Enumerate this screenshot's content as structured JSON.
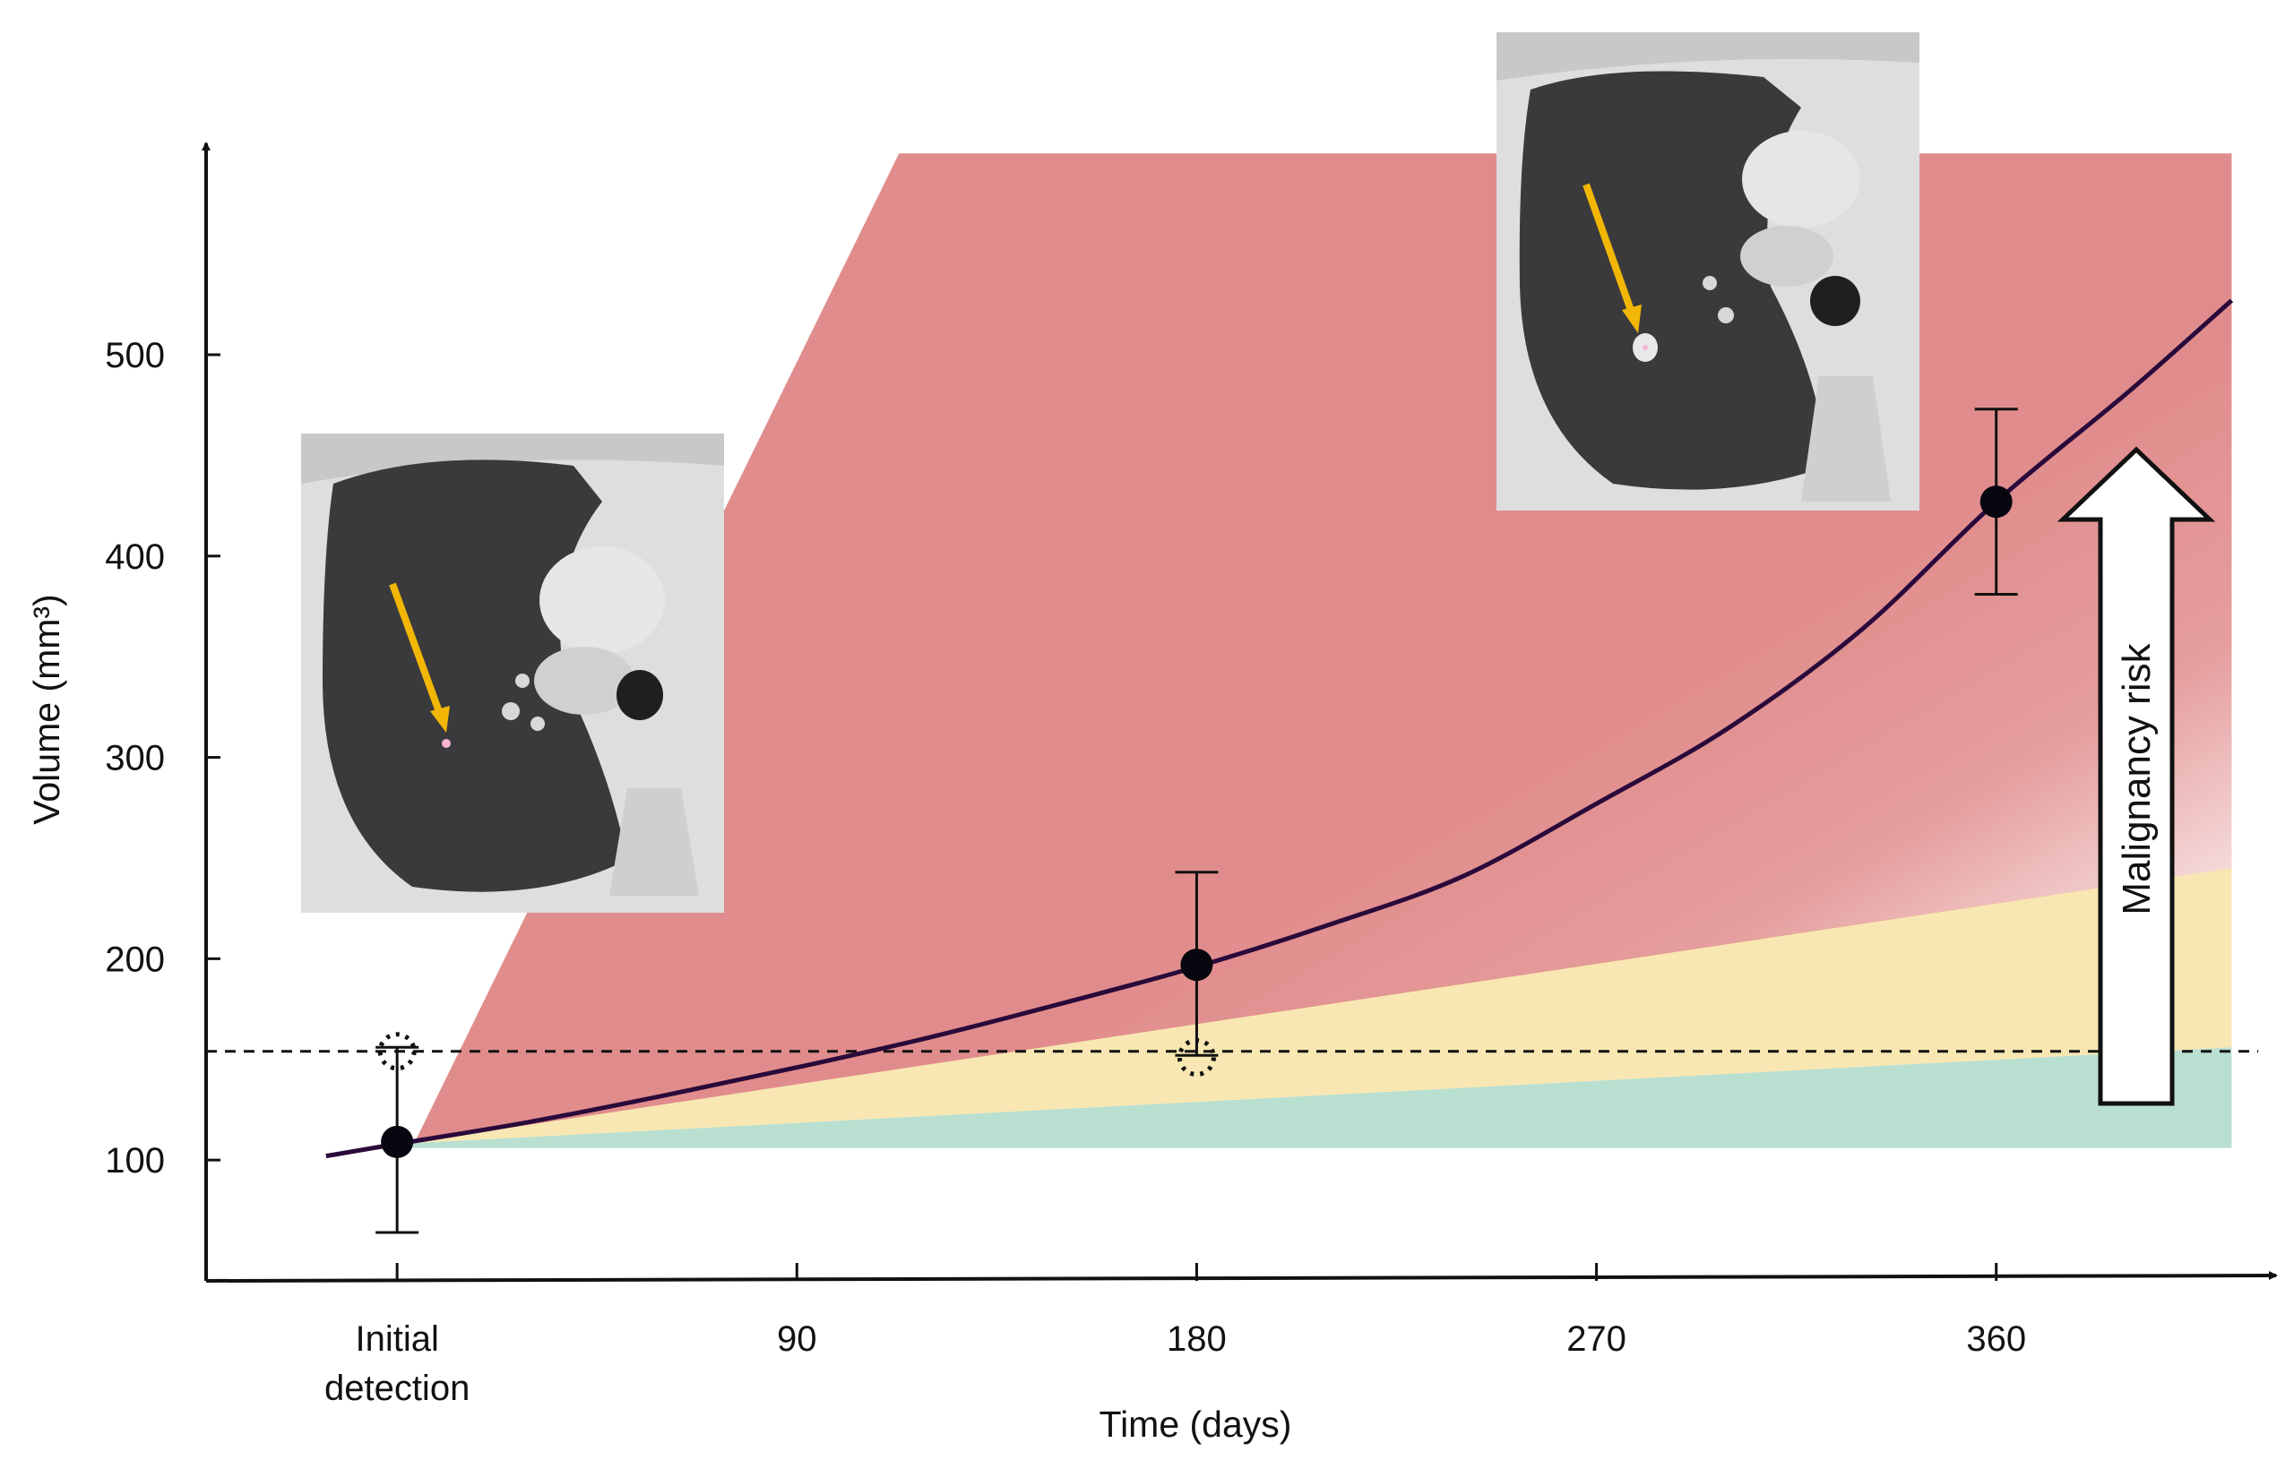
{
  "chart_data": {
    "type": "line",
    "xlabel": "Time (days)",
    "ylabel": "Volume (mm³)",
    "x_ticks": [
      {
        "value": 0,
        "lines": [
          "Initial",
          "detection"
        ]
      },
      {
        "value": 90,
        "lines": [
          "90"
        ]
      },
      {
        "value": 180,
        "lines": [
          "180"
        ]
      },
      {
        "value": 270,
        "lines": [
          "270"
        ]
      },
      {
        "value": 360,
        "lines": [
          "360"
        ]
      }
    ],
    "y_ticks": [
      100,
      200,
      300,
      400,
      500
    ],
    "xlim": [
      -43,
      423
    ],
    "ylim": [
      40,
      605
    ],
    "threshold_line": 154,
    "measurements": [
      {
        "x": 0,
        "y": 109,
        "err_low": 64,
        "err_high": 156
      },
      {
        "x": 180,
        "y": 197,
        "err_low": 152,
        "err_high": 243
      },
      {
        "x": 360,
        "y": 427,
        "err_low": 381,
        "err_high": 473
      }
    ],
    "volume_threshold_markers": [
      {
        "x": 0,
        "y": 154
      },
      {
        "x": 180,
        "y": 151
      }
    ],
    "fitted_curve": {
      "color": "#2a0a3a",
      "x": [
        -16,
        0,
        30,
        60,
        90,
        120,
        150,
        180,
        210,
        240,
        270,
        300,
        330,
        360,
        390,
        413
      ],
      "y": [
        102,
        108,
        119,
        132,
        146,
        161,
        178,
        196,
        217,
        241,
        277,
        315,
        364,
        427,
        482,
        527
      ]
    },
    "risk_zones": [
      {
        "risk": "low",
        "color": "#b9dfd0",
        "from_x": 0,
        "to_x": 413,
        "lower": [
          106,
          106
        ],
        "upper": [
          108,
          156
        ]
      },
      {
        "risk": "intermediate",
        "color": "#f8e7b2",
        "from_x": 0,
        "to_x": 413,
        "lower": [
          108,
          156
        ],
        "upper": [
          109,
          245
        ]
      },
      {
        "risk": "high",
        "color": "#e18c8c",
        "polygon": [
          [
            4,
            109
          ],
          [
            113,
            600
          ],
          [
            413,
            600
          ],
          [
            413,
            245
          ]
        ]
      }
    ],
    "annotation": "Malignancy risk",
    "ct_insets": [
      {
        "near": "Initial detection",
        "arrow_color": "#f2b705"
      },
      {
        "near": "360",
        "arrow_color": "#f2b705"
      }
    ]
  }
}
